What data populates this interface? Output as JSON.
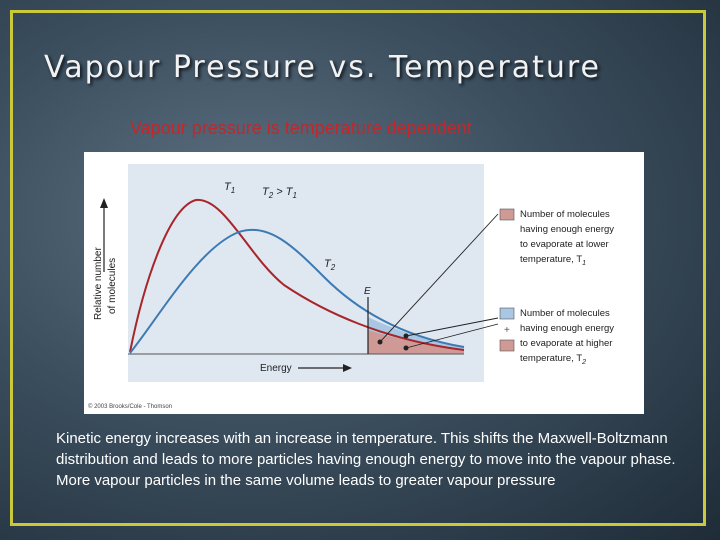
{
  "slide": {
    "title": "Vapour Pressure vs. Temperature",
    "subtitle": "Vapour pressure is temperature dependent",
    "body": "Kinetic energy increases with an increase in temperature. This shifts the Maxwell-Boltzmann distribution and leads to more particles having enough energy to move into the vapour phase.  More vapour particles in the same volume leads to greater vapour pressure"
  },
  "figure": {
    "y_axis_label_line1": "Relative number",
    "y_axis_label_line2": "of molecules",
    "x_axis_label": "Energy",
    "curve_label_t1": "T",
    "curve_label_t1_sub": "1",
    "curve_label_t2": "T",
    "curve_label_t2_sub": "2",
    "comparison_label": "T",
    "comparison_label_sub_a": "2",
    "comparison_label_mid": " > T",
    "comparison_label_sub_b": "1",
    "threshold_label": "E",
    "legend": [
      {
        "line1": "Number of molecules",
        "line2": "having enough energy",
        "line3": "to evaporate at lower",
        "line4": "temperature, T",
        "sub": "1",
        "color": "#cf9a96"
      },
      {
        "line1": "Number of molecules",
        "line2": "having enough energy",
        "line3": "to evaporate at higher",
        "line4": "temperature, T",
        "sub": "2",
        "color": "#a9c6e2"
      }
    ],
    "copyright": "© 2003 Brooks/Cole - Thomson",
    "colors": {
      "t1_curve": "#a8252b",
      "t2_curve": "#3d7ab3",
      "plot_bg": "#dfe8f1",
      "red_fill": "#cf9a96",
      "blue_fill": "#a9c6e2"
    }
  }
}
